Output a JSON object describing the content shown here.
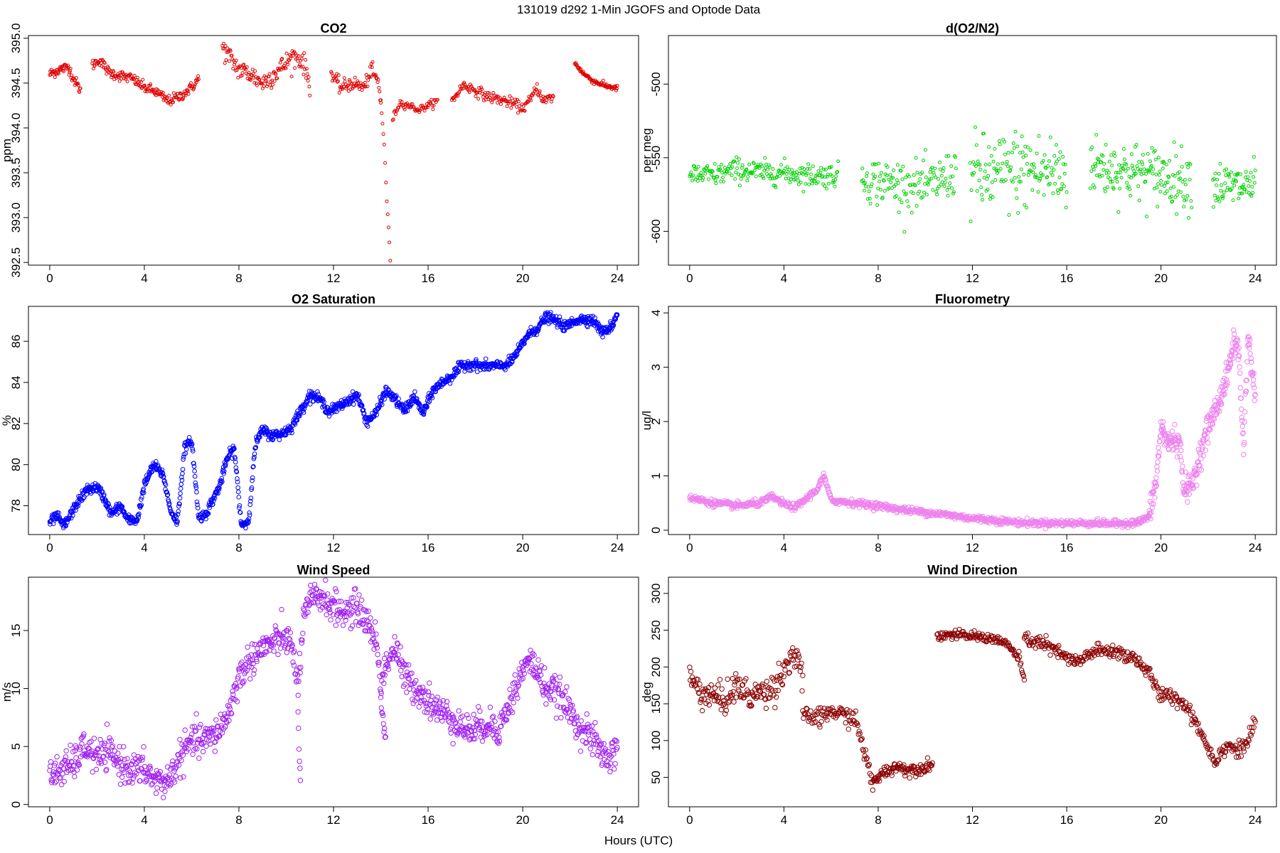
{
  "figure": {
    "title": "131019   d292   1-Min  JGOFS and Optode Data",
    "xlabel": "Hours (UTC)"
  },
  "chart_data": [
    {
      "type": "scatter",
      "title": "CO2",
      "ylabel": "ppm",
      "xlabel": "",
      "color": "#e00000",
      "marker_radius": 2,
      "x_ticks": [
        "0",
        "4",
        "8",
        "12",
        "16",
        "20",
        "24"
      ],
      "y_ticks": [
        "392.5",
        "393.0",
        "393.5",
        "394.0",
        "394.5",
        "395.0"
      ],
      "y_tick_values": [
        392.5,
        393.0,
        393.5,
        394.0,
        394.5,
        395.0
      ],
      "xlim": [
        -0.9,
        24.9
      ],
      "ylim": [
        392.47,
        395.03
      ],
      "segments": [
        {
          "x": [
            0,
            0.4,
            0.8,
            1.0,
            1.3
          ],
          "y": [
            394.6,
            394.65,
            394.68,
            394.55,
            394.42
          ],
          "noise": 0.03,
          "n": 60
        },
        {
          "x": [
            1.8,
            2.1,
            2.5,
            3.0,
            3.5,
            4.0,
            4.5,
            5.0,
            5.5,
            6.0,
            6.3
          ],
          "y": [
            394.7,
            394.76,
            394.62,
            394.58,
            394.55,
            394.45,
            394.4,
            394.3,
            394.35,
            394.45,
            394.55
          ],
          "noise": 0.03,
          "n": 180
        },
        {
          "x": [
            7.3,
            7.7,
            8.0,
            8.5,
            9.0,
            9.5,
            9.9,
            10.3,
            10.7,
            11.0
          ],
          "y": [
            394.9,
            394.75,
            394.65,
            394.6,
            394.5,
            394.6,
            394.7,
            394.8,
            394.75,
            394.5
          ],
          "noise": 0.06,
          "n": 140
        },
        {
          "x": [
            11.9,
            12.3,
            12.8,
            13.3,
            13.6,
            13.9,
            14.0
          ],
          "y": [
            394.6,
            394.45,
            394.5,
            394.45,
            394.65,
            394.5,
            394.28
          ],
          "noise": 0.04,
          "n": 80
        },
        {
          "x": [
            14.0,
            14.15,
            14.25,
            14.35,
            14.4
          ],
          "y": [
            394.28,
            393.8,
            393.2,
            392.8,
            392.52
          ],
          "noise": 0.0,
          "n": 12
        },
        {
          "x": [
            14.5,
            14.8,
            15.2,
            15.6,
            16.0,
            16.4
          ],
          "y": [
            394.1,
            394.28,
            394.25,
            394.2,
            394.25,
            394.3
          ],
          "noise": 0.02,
          "n": 60
        },
        {
          "x": [
            17.0,
            17.5,
            18.0,
            18.5,
            19.0,
            19.5,
            20.0,
            20.3,
            20.6,
            20.9,
            21.3
          ],
          "y": [
            394.3,
            394.48,
            394.42,
            394.35,
            394.32,
            394.28,
            394.22,
            394.3,
            394.45,
            394.3,
            394.35
          ],
          "noise": 0.03,
          "n": 150
        },
        {
          "x": [
            22.2,
            22.6,
            23.0,
            23.5,
            24.0
          ],
          "y": [
            394.72,
            394.6,
            394.52,
            394.47,
            394.44
          ],
          "noise": 0.015,
          "n": 80
        }
      ]
    },
    {
      "type": "scatter",
      "title": "d(O2/N2)",
      "ylabel": "per meg",
      "xlabel": "",
      "color": "#00d000",
      "marker_radius": 2,
      "x_ticks": [
        "0",
        "4",
        "8",
        "12",
        "16",
        "20",
        "24"
      ],
      "y_ticks": [
        "-600",
        "-550",
        "-500"
      ],
      "y_tick_values": [
        -600,
        -550,
        -500
      ],
      "xlim": [
        -0.9,
        24.9
      ],
      "ylim": [
        -623,
        -467
      ],
      "segments": [
        {
          "x": [
            0,
            1,
            2,
            3,
            4,
            5,
            6.3
          ],
          "y": [
            -562,
            -562,
            -558,
            -560,
            -560,
            -562,
            -562
          ],
          "noise": 4,
          "n": 220
        },
        {
          "x": [
            7.3,
            8,
            9,
            10,
            11,
            11.3
          ],
          "y": [
            -563,
            -566,
            -568,
            -570,
            -562,
            -560
          ],
          "noise": 8,
          "n": 140
        },
        {
          "x": [
            11.9,
            13,
            14,
            15,
            16
          ],
          "y": [
            -562,
            -562,
            -558,
            -560,
            -560
          ],
          "noise": 14,
          "n": 150
        },
        {
          "x": [
            17,
            18,
            19,
            20,
            21.3
          ],
          "y": [
            -555,
            -558,
            -560,
            -562,
            -565
          ],
          "noise": 10,
          "n": 170
        },
        {
          "x": [
            22.2,
            23,
            24
          ],
          "y": [
            -568,
            -570,
            -568
          ],
          "noise": 8,
          "n": 70
        }
      ]
    },
    {
      "type": "scatter",
      "title": "O2 Saturation",
      "ylabel": "%",
      "xlabel": "",
      "color": "#0000ff",
      "marker_radius": 2.8,
      "x_ticks": [
        "0",
        "4",
        "8",
        "12",
        "16",
        "20",
        "24"
      ],
      "y_ticks": [
        "78",
        "80",
        "82",
        "84",
        "86"
      ],
      "y_tick_values": [
        78,
        80,
        82,
        84,
        86
      ],
      "xlim": [
        -0.9,
        24.9
      ],
      "ylim": [
        76.6,
        87.7
      ],
      "segments": [
        {
          "x": [
            0,
            0.3,
            0.6,
            0.9,
            1.2,
            1.6,
            2.0,
            2.3,
            2.6,
            3.0,
            3.3,
            3.7,
            4.0,
            4.4,
            4.8,
            5.1,
            5.4,
            5.7,
            6.0,
            6.3,
            6.6,
            6.9,
            7.2,
            7.5,
            7.8,
            8.1,
            8.4,
            8.7,
            9.0,
            9.4,
            9.8,
            10.2,
            10.6,
            11.0,
            11.4,
            11.8,
            12.2,
            12.6,
            13.0,
            13.4,
            13.8,
            14.2,
            14.6,
            15.0,
            15.4,
            15.8,
            16.2,
            16.6,
            17.0,
            17.4,
            17.8,
            18.2,
            18.6,
            19.0,
            19.4,
            19.8,
            20.2,
            20.6,
            21.0,
            21.4,
            21.8,
            22.2,
            22.6,
            23.0,
            23.4,
            23.8,
            24.0
          ],
          "y": [
            77.2,
            77.5,
            77.0,
            77.6,
            78.2,
            78.8,
            78.9,
            78.4,
            77.6,
            78.0,
            77.3,
            77.3,
            79.0,
            80.0,
            79.5,
            77.8,
            77.2,
            80.8,
            81.2,
            77.4,
            77.6,
            78.3,
            79.0,
            80.3,
            80.8,
            77.1,
            77.2,
            81.0,
            81.7,
            81.4,
            81.5,
            81.8,
            82.6,
            83.4,
            83.2,
            82.6,
            82.8,
            83.1,
            83.4,
            82.1,
            82.5,
            83.6,
            83.2,
            82.6,
            83.3,
            82.5,
            83.6,
            84.0,
            84.3,
            84.8,
            84.9,
            84.8,
            84.8,
            84.8,
            84.9,
            85.5,
            86.3,
            86.6,
            87.2,
            87.0,
            86.7,
            87.0,
            87.1,
            87.0,
            86.4,
            86.8,
            87.4
          ],
          "noise": 0.12,
          "n": 1400
        }
      ]
    },
    {
      "type": "scatter",
      "title": "Fluorometry",
      "ylabel": "ug/l",
      "xlabel": "",
      "color": "#ee82ee",
      "marker_radius": 3.2,
      "x_ticks": [
        "0",
        "4",
        "8",
        "12",
        "16",
        "20",
        "24"
      ],
      "y_ticks": [
        "0",
        "1",
        "2",
        "3",
        "4"
      ],
      "y_tick_values": [
        0,
        1,
        2,
        3,
        4
      ],
      "xlim": [
        -0.9,
        24.9
      ],
      "ylim": [
        -0.08,
        4.12
      ],
      "segments": [
        {
          "x": [
            0,
            1,
            2,
            3,
            3.5,
            4,
            4.5,
            5,
            5.4,
            5.7,
            6,
            7,
            8,
            9,
            10,
            11,
            12,
            13,
            14,
            15,
            16,
            17,
            18,
            19,
            19.5
          ],
          "y": [
            0.6,
            0.5,
            0.45,
            0.5,
            0.62,
            0.48,
            0.42,
            0.6,
            0.75,
            1.0,
            0.55,
            0.5,
            0.45,
            0.38,
            0.33,
            0.28,
            0.22,
            0.18,
            0.14,
            0.13,
            0.13,
            0.13,
            0.12,
            0.14,
            0.25
          ],
          "noise": 0.03,
          "n": 900
        },
        {
          "x": [
            19.5,
            19.8,
            20.0,
            20.3,
            20.6,
            20.8,
            21.0,
            21.3,
            21.6,
            22.0,
            22.4,
            22.8,
            23.1,
            23.3,
            23.5,
            23.7,
            24.0
          ],
          "y": [
            0.25,
            0.9,
            1.9,
            1.6,
            1.7,
            1.55,
            0.75,
            0.8,
            1.3,
            1.9,
            2.3,
            2.8,
            3.5,
            3.3,
            1.5,
            3.6,
            2.4
          ],
          "noise": 0.12,
          "n": 300
        }
      ]
    },
    {
      "type": "scatter",
      "title": "Wind Speed",
      "ylabel": "m/s",
      "xlabel": "",
      "color": "#a020f0",
      "marker_radius": 3.2,
      "x_ticks": [
        "0",
        "4",
        "8",
        "12",
        "16",
        "20",
        "24"
      ],
      "y_ticks": [
        "0",
        "5",
        "10",
        "15"
      ],
      "y_tick_values": [
        0,
        5,
        10,
        15
      ],
      "xlim": [
        -0.9,
        24.9
      ],
      "ylim": [
        -0.2,
        19.6
      ],
      "segments": [
        {
          "x": [
            0,
            0.5,
            1,
            1.5,
            2,
            2.5,
            3,
            3.5,
            4,
            4.5,
            5,
            5.5,
            6,
            6.5,
            7,
            7.5,
            8,
            8.5,
            9,
            9.5,
            10,
            10.3,
            10.5,
            10.7,
            11,
            11.5,
            12,
            12.5,
            13,
            13.5,
            13.8,
            14.0,
            14.3,
            14.6,
            15,
            15.5,
            16,
            16.5,
            17,
            17.5,
            18,
            18.5,
            19,
            19.5,
            20,
            20.3,
            20.6,
            21,
            21.5,
            22,
            22.5,
            23,
            23.5,
            24
          ],
          "y": [
            2.5,
            3.0,
            3.5,
            5.0,
            4.0,
            4.5,
            3.5,
            3.0,
            3.0,
            2.0,
            2.0,
            4.0,
            5.5,
            5.5,
            6.0,
            7.5,
            11.0,
            12.5,
            13.5,
            14.0,
            14.5,
            13.0,
            10.0,
            15.5,
            17.5,
            18.0,
            17.0,
            16.5,
            17.0,
            15.5,
            14.0,
            10.5,
            12.5,
            13.5,
            11.0,
            10.0,
            9.0,
            8.0,
            7.5,
            6.5,
            6.5,
            7.0,
            6.5,
            9.0,
            11.5,
            12.5,
            11.5,
            10.0,
            9.5,
            8.0,
            6.5,
            5.5,
            4.0,
            4.5
          ],
          "noise": 0.7,
          "n": 1100
        },
        {
          "x": [
            10.5,
            10.55,
            10.6
          ],
          "y": [
            8.0,
            4.5,
            2.2
          ],
          "noise": 0.3,
          "n": 6
        },
        {
          "x": [
            14.0,
            14.1,
            14.2
          ],
          "y": [
            9.0,
            7.0,
            5.8
          ],
          "noise": 0.4,
          "n": 10
        }
      ]
    },
    {
      "type": "scatter",
      "title": "Wind Direction",
      "ylabel": "deg",
      "xlabel": "",
      "color": "#8b0000",
      "marker_radius": 3.2,
      "x_ticks": [
        "0",
        "4",
        "8",
        "12",
        "16",
        "20",
        "24"
      ],
      "y_ticks": [
        "50",
        "100",
        "150",
        "200",
        "250",
        "300"
      ],
      "y_tick_values": [
        50,
        100,
        150,
        200,
        250,
        300
      ],
      "xlim": [
        -0.9,
        24.9
      ],
      "ylim": [
        10,
        322
      ],
      "segments": [
        {
          "x": [
            0,
            0.5,
            1,
            1.5,
            2,
            2.5,
            3,
            3.5,
            4,
            4.3,
            4.6,
            4.8
          ],
          "y": [
            185,
            165,
            160,
            155,
            175,
            160,
            165,
            170,
            195,
            215,
            215,
            175
          ],
          "noise": 10,
          "n": 180
        },
        {
          "x": [
            4.8,
            5,
            5.5,
            6,
            6.5,
            7,
            7.3,
            7.6,
            7.8
          ],
          "y": [
            130,
            133,
            130,
            140,
            135,
            130,
            100,
            60,
            35
          ],
          "noise": 6,
          "n": 100
        },
        {
          "x": [
            7.8,
            8.3,
            8.8,
            9.3,
            9.8,
            10.3
          ],
          "y": [
            45,
            58,
            65,
            60,
            62,
            68
          ],
          "noise": 4,
          "n": 100
        },
        {
          "x": [
            10.5,
            11,
            12,
            13,
            13.5,
            14,
            14.2
          ],
          "y": [
            242,
            244,
            242,
            238,
            230,
            210,
            180
          ],
          "noise": 3,
          "n": 130
        },
        {
          "x": [
            14.2,
            15,
            16,
            16.5,
            17,
            18,
            19,
            19.5,
            20,
            20.5,
            21,
            21.5,
            22,
            22.3,
            22.8,
            23.3,
            23.7,
            24
          ],
          "y": [
            238,
            232,
            212,
            205,
            220,
            222,
            210,
            190,
            160,
            160,
            150,
            125,
            90,
            72,
            95,
            85,
            100,
            125
          ],
          "noise": 5,
          "n": 330
        }
      ]
    }
  ]
}
